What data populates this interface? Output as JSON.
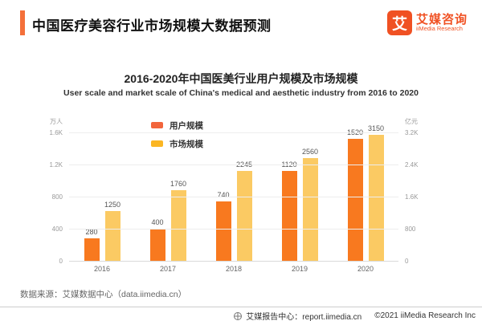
{
  "header": {
    "title": "中国医疗美容行业市场规模大数据预测",
    "logo": {
      "mark": "艾",
      "name": "艾媒咨询",
      "subname": "iiMedia Research"
    }
  },
  "chart_data": {
    "type": "bar",
    "title": "2016-2020年中国医美行业用户规模及市场规模",
    "subtitle": "User scale and market scale of China's medical and aesthetic industry from 2016 to 2020",
    "categories": [
      "2016",
      "2017",
      "2018",
      "2019",
      "2020"
    ],
    "series": [
      {
        "name": "用户规模",
        "axis": "left",
        "values": [
          280,
          400,
          740,
          1120,
          1520
        ],
        "bar_color": "#F8791F",
        "legend_color": "#F2653C"
      },
      {
        "name": "市场规模",
        "axis": "right",
        "values": [
          1250,
          1760,
          2245,
          2560,
          3150
        ],
        "bar_color": "#FBCA63",
        "legend_color": "#FBB623"
      }
    ],
    "left_axis": {
      "unit": "万人",
      "max": 1600,
      "ticks": [
        "1.6K",
        "1.2K",
        "800",
        "400",
        "0"
      ]
    },
    "right_axis": {
      "unit": "亿元",
      "max": 3200,
      "ticks": [
        "3.2K",
        "2.4K",
        "1.6K",
        "800",
        "0"
      ]
    },
    "grid": true,
    "legend_position": "top-left-inside"
  },
  "source": {
    "text": "数据来源：艾媒数据中心（data.iimedia.cn）"
  },
  "footer": {
    "site_label": "艾媒报告中心：report.iimedia.cn",
    "copyright": "©2021  iiMedia Research  Inc"
  }
}
